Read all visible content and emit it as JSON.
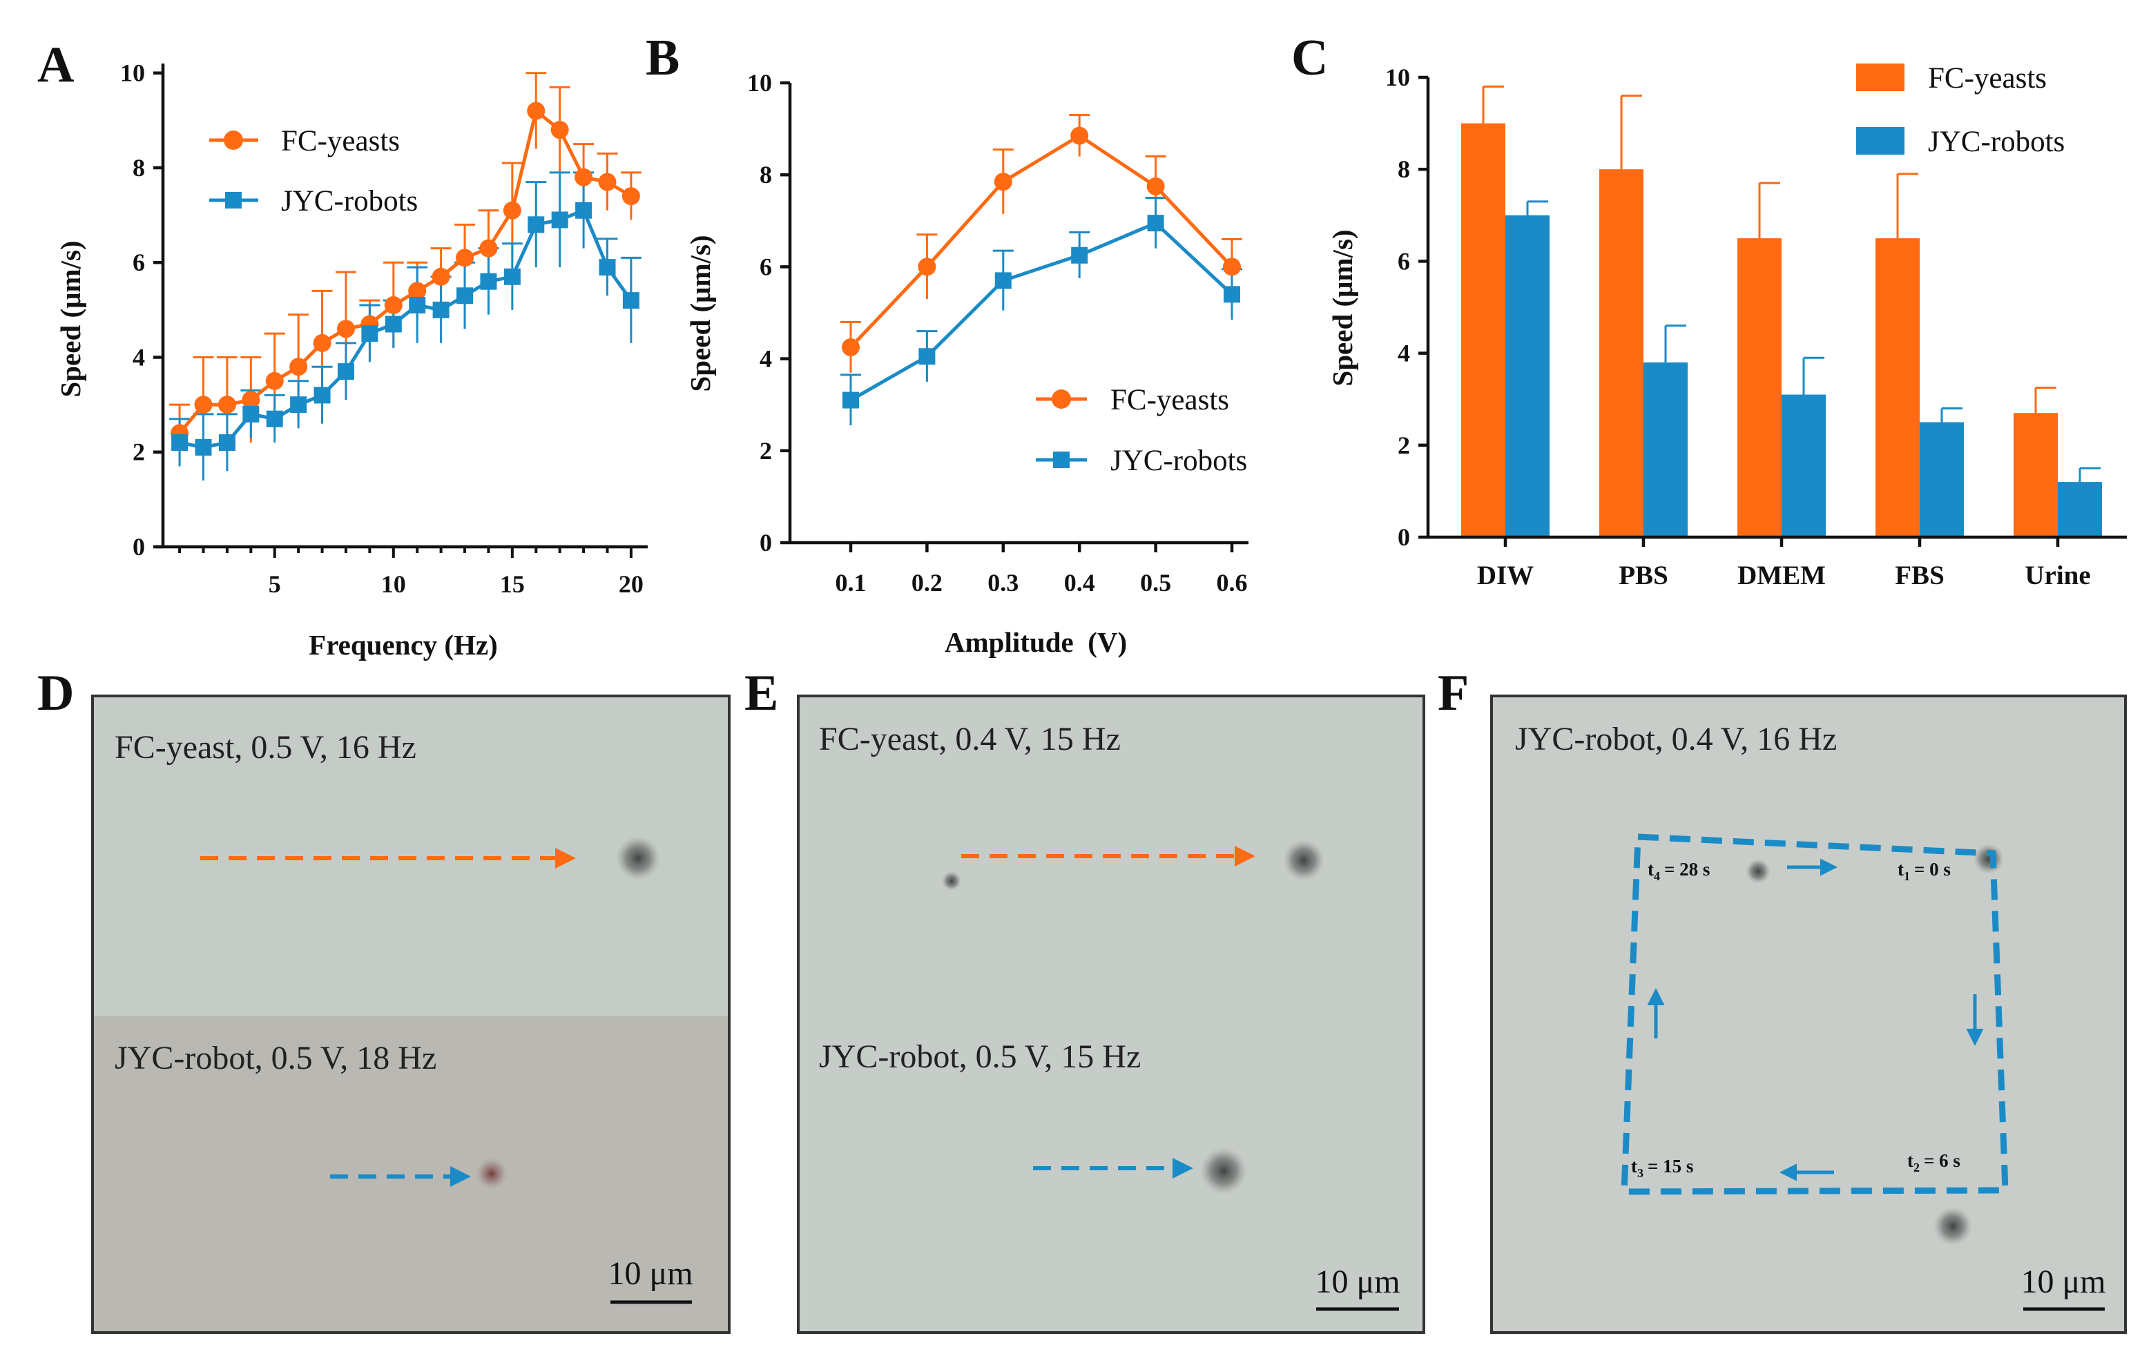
{
  "colors": {
    "fc": "#FF6A12",
    "jyc": "#1A8BC7",
    "axis": "#111111",
    "micro_bg": "#c7cdc8",
    "micro_bg_warm": "#b9b7b2",
    "micro_border": "#333333"
  },
  "panel_letters": [
    "A",
    "B",
    "C",
    "D",
    "E",
    "F"
  ],
  "chart_data": [
    {
      "panel": "A",
      "type": "line",
      "xlabel": "Frequency (Hz)",
      "ylabel": "Speed (μm/s)",
      "xlim": [
        0.3,
        20.7
      ],
      "ylim": [
        0,
        10.2
      ],
      "xticks": [
        5,
        10,
        15,
        20
      ],
      "yticks": [
        0,
        2,
        4,
        6,
        8,
        10
      ],
      "legend_position": "upper-left",
      "x": [
        1,
        2,
        3,
        4,
        5,
        6,
        7,
        8,
        9,
        10,
        11,
        12,
        13,
        14,
        15,
        16,
        17,
        18,
        19,
        20
      ],
      "series": [
        {
          "name": "FC-yeasts",
          "marker": "circle",
          "values": [
            2.4,
            3.0,
            3.0,
            3.1,
            3.5,
            3.8,
            4.3,
            4.6,
            4.7,
            5.1,
            5.4,
            5.7,
            6.1,
            6.3,
            7.1,
            9.2,
            8.8,
            7.8,
            7.7,
            7.4
          ],
          "errors": [
            0.6,
            1.0,
            1.0,
            0.9,
            1.0,
            1.1,
            1.1,
            1.2,
            0.5,
            0.9,
            0.6,
            0.6,
            0.7,
            0.8,
            1.0,
            0.8,
            0.9,
            0.7,
            0.6,
            0.5
          ]
        },
        {
          "name": "JYC-robots",
          "marker": "square",
          "values": [
            2.2,
            2.1,
            2.2,
            2.8,
            2.7,
            3.0,
            3.2,
            3.7,
            4.5,
            4.7,
            5.1,
            5.0,
            5.3,
            5.6,
            5.7,
            6.8,
            6.9,
            7.1,
            5.9,
            5.2
          ],
          "errors": [
            0.5,
            0.7,
            0.6,
            0.5,
            0.5,
            0.5,
            0.6,
            0.6,
            0.6,
            0.5,
            0.8,
            0.7,
            0.7,
            0.7,
            0.7,
            0.9,
            1.0,
            0.8,
            0.6,
            0.9
          ]
        }
      ]
    },
    {
      "panel": "B",
      "type": "line",
      "xlabel": "Amplitude  (V)",
      "ylabel": "Speed (μm/s)",
      "ylim": [
        0,
        10
      ],
      "categories": [
        "0.1",
        "0.2",
        "0.3",
        "0.4",
        "0.5",
        "0.6"
      ],
      "yticks": [
        0,
        2,
        4,
        6,
        8,
        10
      ],
      "legend_position": "lower-right",
      "series": [
        {
          "name": "FC-yeasts",
          "marker": "circle",
          "values": [
            4.25,
            6.0,
            7.85,
            8.85,
            7.75,
            6.0
          ],
          "errors": [
            0.55,
            0.7,
            0.7,
            0.45,
            0.65,
            0.6
          ]
        },
        {
          "name": "JYC-robots",
          "marker": "square",
          "values": [
            3.1,
            4.05,
            5.7,
            6.25,
            6.95,
            5.4
          ],
          "errors": [
            0.55,
            0.55,
            0.65,
            0.5,
            0.55,
            0.55
          ]
        }
      ]
    },
    {
      "panel": "C",
      "type": "bar",
      "xlabel": "",
      "ylabel": "Speed (μm/s)",
      "ylim": [
        0,
        10
      ],
      "yticks": [
        0,
        2,
        4,
        6,
        8,
        10
      ],
      "categories": [
        "DIW",
        "PBS",
        "DMEM",
        "FBS",
        "Urine"
      ],
      "legend_position": "top-right",
      "series": [
        {
          "name": "FC-yeasts",
          "values": [
            9.0,
            8.0,
            6.5,
            6.5,
            2.7
          ],
          "errors": [
            0.8,
            1.6,
            1.2,
            1.4,
            0.55
          ]
        },
        {
          "name": "JYC-robots",
          "values": [
            7.0,
            3.8,
            3.1,
            2.5,
            1.2
          ],
          "errors": [
            0.3,
            0.8,
            0.8,
            0.3,
            0.3
          ]
        }
      ]
    }
  ],
  "micrographs": {
    "D": {
      "top_label": "FC-yeast, 0.5 V, 16 Hz",
      "bottom_label": "JYC-robot, 0.5 V, 18 Hz",
      "scale": "10 μm"
    },
    "E": {
      "top_label": "FC-yeast, 0.4 V, 15 Hz",
      "bottom_label": "JYC-robot, 0.5 V, 15 Hz",
      "scale": "10 μm"
    },
    "F": {
      "label": "JYC-robot, 0.4 V, 16 Hz",
      "scale": "10 μm",
      "timepoints": [
        {
          "sub": "1",
          "time": "= 0 s"
        },
        {
          "sub": "2",
          "time": "= 6 s"
        },
        {
          "sub": "3",
          "time": "= 15 s"
        },
        {
          "sub": "4",
          "time": "= 28 s"
        }
      ]
    }
  }
}
